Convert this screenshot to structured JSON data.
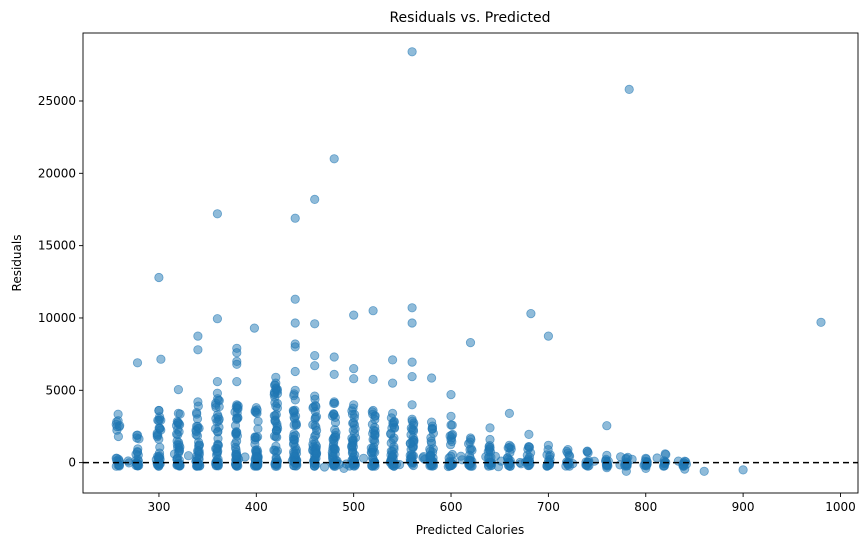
{
  "chart_data": {
    "type": "scatter",
    "title": "Residuals vs. Predicted",
    "xlabel": "Predicted Calories",
    "ylabel": "Residuals",
    "xlim": [
      222,
      1018
    ],
    "ylim": [
      -2100,
      29700
    ],
    "xticks": [
      300,
      400,
      500,
      600,
      700,
      800,
      900,
      1000
    ],
    "yticks": [
      0,
      5000,
      10000,
      15000,
      20000,
      25000
    ],
    "grid": false,
    "legend": "none",
    "reference_line": {
      "y": 0,
      "style": "dashed",
      "color": "#000000"
    },
    "marker_color": "#1f77b4",
    "outliers": [
      {
        "x": 560,
        "y": 28400
      },
      {
        "x": 783,
        "y": 25800
      },
      {
        "x": 480,
        "y": 21000
      },
      {
        "x": 460,
        "y": 18200
      },
      {
        "x": 360,
        "y": 17200
      },
      {
        "x": 440,
        "y": 16900
      },
      {
        "x": 300,
        "y": 12800
      },
      {
        "x": 440,
        "y": 11300
      },
      {
        "x": 560,
        "y": 10700
      },
      {
        "x": 520,
        "y": 10500
      },
      {
        "x": 682,
        "y": 10300
      },
      {
        "x": 500,
        "y": 10200
      },
      {
        "x": 360,
        "y": 9950
      },
      {
        "x": 980,
        "y": 9700
      },
      {
        "x": 440,
        "y": 9650
      },
      {
        "x": 460,
        "y": 9600
      },
      {
        "x": 560,
        "y": 9650
      },
      {
        "x": 398,
        "y": 9300
      },
      {
        "x": 340,
        "y": 8750
      },
      {
        "x": 700,
        "y": 8750
      },
      {
        "x": 620,
        "y": 8300
      },
      {
        "x": 440,
        "y": 8200
      },
      {
        "x": 440,
        "y": 8000
      },
      {
        "x": 380,
        "y": 7900
      },
      {
        "x": 340,
        "y": 7800
      },
      {
        "x": 380,
        "y": 7600
      },
      {
        "x": 460,
        "y": 7400
      },
      {
        "x": 480,
        "y": 7300
      },
      {
        "x": 302,
        "y": 7150
      },
      {
        "x": 540,
        "y": 7100
      },
      {
        "x": 380,
        "y": 7000
      },
      {
        "x": 560,
        "y": 6950
      },
      {
        "x": 278,
        "y": 6900
      },
      {
        "x": 380,
        "y": 6800
      },
      {
        "x": 460,
        "y": 6700
      },
      {
        "x": 500,
        "y": 6500
      },
      {
        "x": 440,
        "y": 6300
      },
      {
        "x": 480,
        "y": 6100
      },
      {
        "x": 560,
        "y": 5950
      },
      {
        "x": 420,
        "y": 5900
      },
      {
        "x": 580,
        "y": 5850
      },
      {
        "x": 500,
        "y": 5800
      },
      {
        "x": 520,
        "y": 5750
      },
      {
        "x": 380,
        "y": 5600
      },
      {
        "x": 540,
        "y": 5500
      },
      {
        "x": 360,
        "y": 5600
      },
      {
        "x": 320,
        "y": 5050
      },
      {
        "x": 600,
        "y": 4700
      },
      {
        "x": 560,
        "y": 4000
      },
      {
        "x": 640,
        "y": 2400
      },
      {
        "x": 660,
        "y": 3400
      },
      {
        "x": 760,
        "y": 2550
      },
      {
        "x": 680,
        "y": 1950
      },
      {
        "x": 600,
        "y": 3200
      },
      {
        "x": 258,
        "y": 3350
      },
      {
        "x": 300,
        "y": 3600
      },
      {
        "x": 420,
        "y": 3900
      }
    ],
    "columns": [
      {
        "x": 258,
        "max": 2900,
        "n": 14
      },
      {
        "x": 278,
        "max": 1900,
        "n": 18
      },
      {
        "x": 300,
        "max": 3600,
        "n": 28
      },
      {
        "x": 320,
        "max": 3400,
        "n": 30
      },
      {
        "x": 340,
        "max": 4200,
        "n": 34
      },
      {
        "x": 360,
        "max": 4800,
        "n": 38
      },
      {
        "x": 380,
        "max": 4000,
        "n": 40
      },
      {
        "x": 400,
        "max": 3800,
        "n": 40
      },
      {
        "x": 420,
        "max": 5500,
        "n": 44
      },
      {
        "x": 440,
        "max": 5000,
        "n": 44
      },
      {
        "x": 460,
        "max": 4600,
        "n": 42
      },
      {
        "x": 480,
        "max": 4200,
        "n": 40
      },
      {
        "x": 500,
        "max": 4000,
        "n": 38
      },
      {
        "x": 520,
        "max": 3600,
        "n": 34
      },
      {
        "x": 540,
        "max": 3400,
        "n": 32
      },
      {
        "x": 560,
        "max": 3000,
        "n": 30
      },
      {
        "x": 580,
        "max": 2800,
        "n": 26
      },
      {
        "x": 600,
        "max": 2600,
        "n": 22
      },
      {
        "x": 620,
        "max": 1700,
        "n": 18
      },
      {
        "x": 640,
        "max": 1600,
        "n": 16
      },
      {
        "x": 660,
        "max": 1200,
        "n": 14
      },
      {
        "x": 680,
        "max": 1100,
        "n": 12
      },
      {
        "x": 700,
        "max": 1200,
        "n": 10
      },
      {
        "x": 720,
        "max": 900,
        "n": 9
      },
      {
        "x": 740,
        "max": 800,
        "n": 8
      },
      {
        "x": 760,
        "max": 500,
        "n": 7
      },
      {
        "x": 780,
        "max": 300,
        "n": 6
      },
      {
        "x": 800,
        "max": 300,
        "n": 6
      },
      {
        "x": 820,
        "max": 600,
        "n": 5
      },
      {
        "x": 840,
        "max": 100,
        "n": 4
      }
    ],
    "negatives": [
      {
        "x": 780,
        "y": -600
      },
      {
        "x": 860,
        "y": -600
      },
      {
        "x": 900,
        "y": -500
      },
      {
        "x": 800,
        "y": -400
      },
      {
        "x": 840,
        "y": -450
      },
      {
        "x": 760,
        "y": -350
      },
      {
        "x": 490,
        "y": -400
      },
      {
        "x": 470,
        "y": -300
      }
    ]
  }
}
